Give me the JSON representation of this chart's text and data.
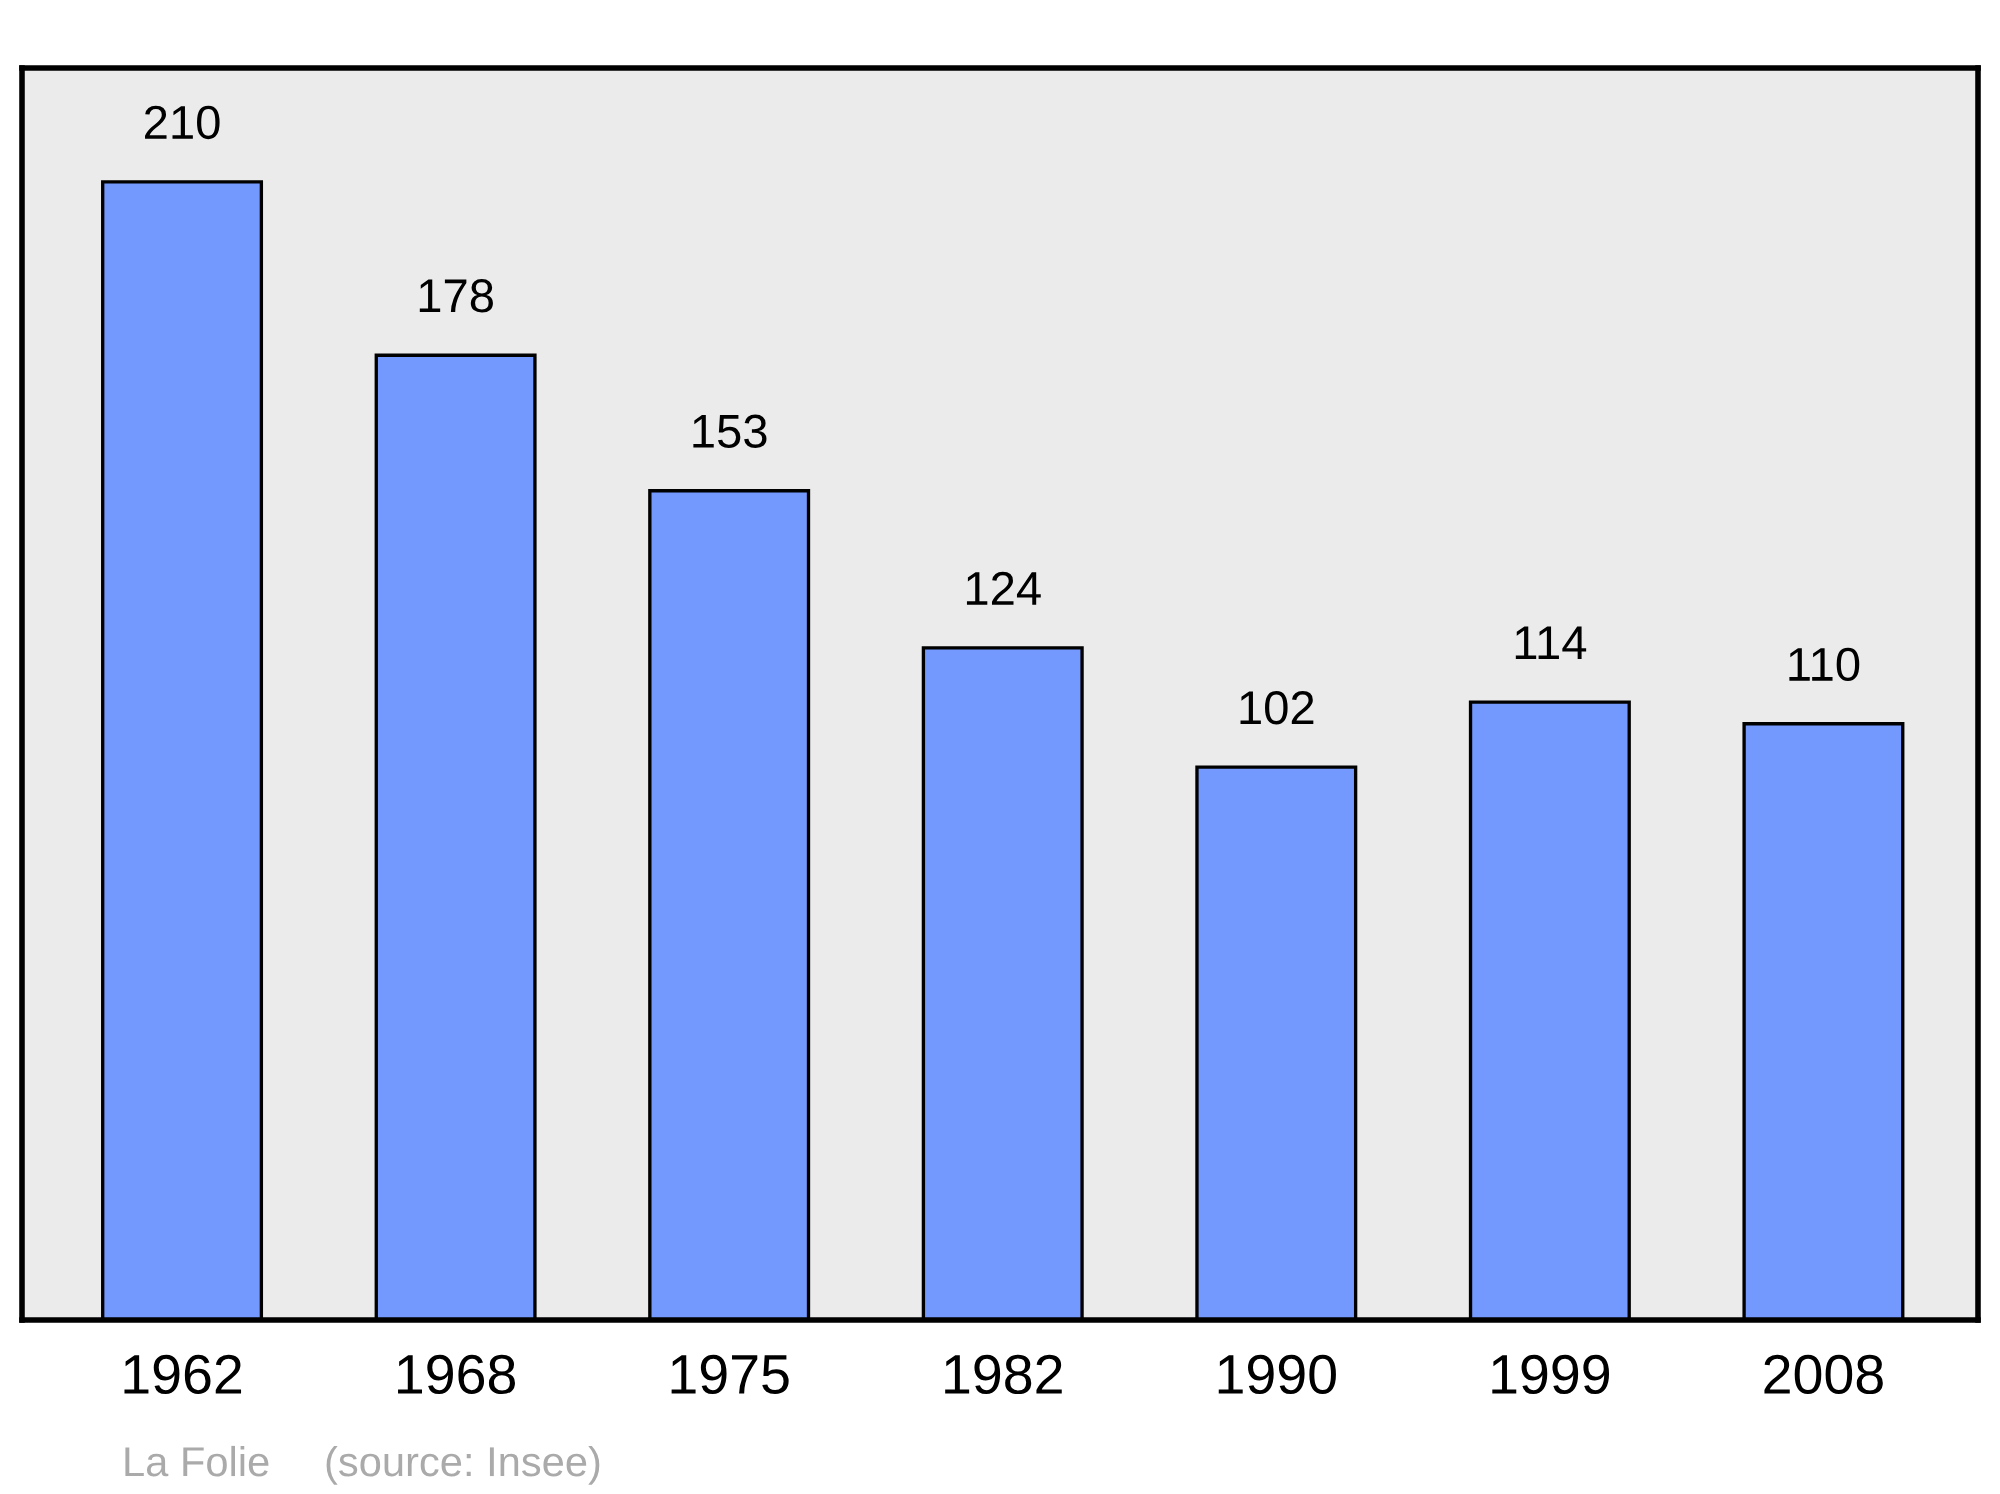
{
  "chart_data": {
    "type": "bar",
    "categories": [
      "1962",
      "1968",
      "1975",
      "1982",
      "1990",
      "1999",
      "2008"
    ],
    "values": [
      210,
      178,
      153,
      124,
      102,
      114,
      110
    ],
    "color": "#7399ff",
    "ylim": [
      0,
      231
    ],
    "tick_labels": "x",
    "data_labels": true,
    "grid": false,
    "legend": false,
    "annotations": [
      "La Folie",
      "(source: Insee)"
    ]
  }
}
